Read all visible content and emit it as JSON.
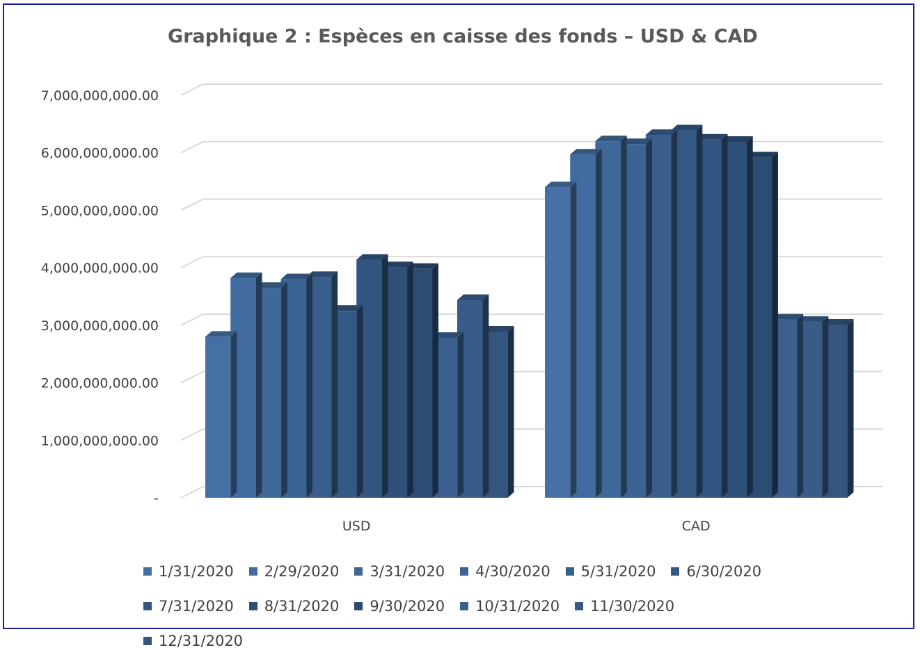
{
  "chart_data": {
    "type": "bar",
    "style": "3d-clustered-column",
    "title": "Graphique 2 : Espèces en caisse des fonds – USD & CAD",
    "xlabel": "",
    "ylabel": "",
    "categories": [
      "USD",
      "CAD"
    ],
    "yticks": [
      "-",
      "1,000,000,000.00",
      "2,000,000,000.00",
      "3,000,000,000.00",
      "4,000,000,000.00",
      "5,000,000,000.00",
      "6,000,000,000.00",
      "7,000,000,000.00"
    ],
    "ylim": [
      0,
      7000000000
    ],
    "grid": true,
    "legend_position": "bottom",
    "series": [
      {
        "name": "1/31/2020",
        "values": [
          2800000000,
          5400000000
        ],
        "color": "#4670a4"
      },
      {
        "name": "2/29/2020",
        "values": [
          3820000000,
          5970000000
        ],
        "color": "#426c9f"
      },
      {
        "name": "3/31/2020",
        "values": [
          3650000000,
          6200000000
        ],
        "color": "#3f6899"
      },
      {
        "name": "4/30/2020",
        "values": [
          3800000000,
          6150000000
        ],
        "color": "#3b6393"
      },
      {
        "name": "5/31/2020",
        "values": [
          3840000000,
          6310000000
        ],
        "color": "#385e8c"
      },
      {
        "name": "6/30/2020",
        "values": [
          3250000000,
          6390000000
        ],
        "color": "#345985"
      },
      {
        "name": "7/31/2020",
        "values": [
          4140000000,
          6230000000
        ],
        "color": "#315580"
      },
      {
        "name": "8/31/2020",
        "values": [
          4010000000,
          6190000000
        ],
        "color": "#2e5079"
      },
      {
        "name": "9/30/2020",
        "values": [
          3980000000,
          5920000000
        ],
        "color": "#2b4c73"
      },
      {
        "name": "10/31/2020",
        "values": [
          2780000000,
          3100000000
        ],
        "color": "#3b6090"
      },
      {
        "name": "11/30/2020",
        "values": [
          3440000000,
          3060000000
        ],
        "color": "#385b88"
      },
      {
        "name": "12/31/2020",
        "values": [
          2890000000,
          3010000000
        ],
        "color": "#345580"
      }
    ]
  }
}
